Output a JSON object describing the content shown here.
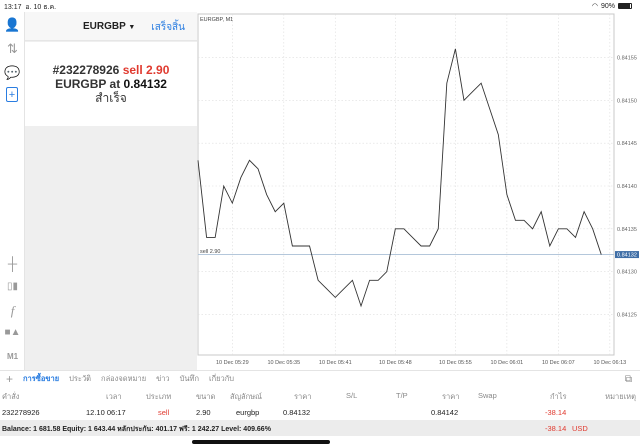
{
  "status": {
    "time": "13:17",
    "date": "อ. 10 ธ.ค.",
    "battery": "90%",
    "battery_level": 0.9
  },
  "sidebar": {
    "icons": [
      "account-icon",
      "trade-arrows-icon",
      "chat-icon",
      "new-order-icon",
      "crosshair-icon",
      "chart-type-icon",
      "indicator-icon",
      "objects-icon"
    ],
    "timeframe": "M1"
  },
  "order_panel": {
    "symbol": "EURGBP",
    "done_label": "เสร็จสิ้น",
    "ticket": "#232278926",
    "side_volume": "sell 2.90",
    "line2_prefix": "EURGBP at",
    "price": "0.84132",
    "result": "สำเร็จ"
  },
  "chart_data": {
    "type": "line",
    "title": "EURGBP, M1",
    "x_start": "10 Dec 05:25",
    "x_step": "1 minute",
    "values": [
      0.84143,
      0.84134,
      0.84134,
      0.8414,
      0.84138,
      0.84141,
      0.84143,
      0.84142,
      0.84139,
      0.84137,
      0.84138,
      0.84133,
      0.84133,
      0.84133,
      0.84129,
      0.84128,
      0.84127,
      0.84128,
      0.84129,
      0.84126,
      0.84129,
      0.84129,
      0.8413,
      0.84135,
      0.84135,
      0.84134,
      0.84133,
      0.84133,
      0.84135,
      0.84152,
      0.84156,
      0.8415,
      0.84151,
      0.84152,
      0.84149,
      0.84146,
      0.84139,
      0.84136,
      0.84136,
      0.84135,
      0.84137,
      0.84133,
      0.84135,
      0.84135,
      0.84134,
      0.84137,
      0.84135,
      0.84132
    ],
    "x_ticks": [
      {
        "label": "10 Dec 05:29",
        "index": 4
      },
      {
        "label": "10 Dec 05:35",
        "index": 10
      },
      {
        "label": "10 Dec 05:41",
        "index": 16
      },
      {
        "label": "10 Dec 05:48",
        "index": 23
      },
      {
        "label": "10 Dec 05:55",
        "index": 30
      },
      {
        "label": "10 Dec 06:01",
        "index": 36
      },
      {
        "label": "10 Dec 06:07",
        "index": 42
      },
      {
        "label": "10 Dec 06:13",
        "index": 48
      }
    ],
    "y_ticks": [
      "0.84155",
      "0.84150",
      "0.84145",
      "0.84140",
      "0.84135",
      "0.84130",
      "0.84125"
    ],
    "ylim": [
      0.84122,
      0.84162
    ],
    "grid": true,
    "order_line": {
      "label": "sell 2.90",
      "price": 0.84132,
      "price_label": "0.84132"
    },
    "colors": {
      "line": "#333333",
      "order_line": "#a9bfd6",
      "price_badge": "#3f6ea6"
    }
  },
  "tabs": {
    "items": [
      "การซื้อขาย",
      "ประวัติ",
      "กล่องจดหมาย",
      "ข่าว",
      "บันทึก",
      "เกี่ยวกับ"
    ],
    "active": 0
  },
  "table": {
    "headers": [
      "คำสั่ง",
      "เวลา",
      "ประเภท",
      "ขนาด",
      "สัญลักษณ์",
      "ราคา",
      "S/L",
      "T/P",
      "ราคา",
      "Swap",
      "กำไร",
      "หมายเหตุ"
    ],
    "row": {
      "order": "232278926",
      "time": "12.10 06:17",
      "type": "sell",
      "size": "2.90",
      "symbol": "eurgbp",
      "open_price": "0.84132",
      "sl": "",
      "tp": "",
      "price": "0.84142",
      "swap": "",
      "profit": "-38.14",
      "comment": ""
    },
    "summary": {
      "text": "Balance: 1 681.58 Equity: 1 643.44 หลักประกัน: 401.17 ฟรี: 1 242.27 Level: 409.66%",
      "profit": "-38.14",
      "currency": "USD"
    }
  }
}
